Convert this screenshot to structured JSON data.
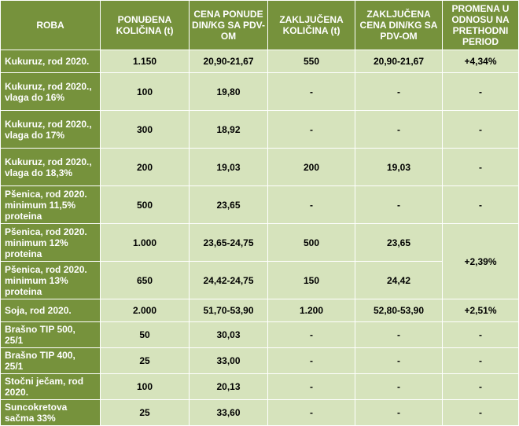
{
  "headers": [
    "ROBA",
    "PONUĐENA KOLIČINA (t)",
    "CENA PONUDE DIN/KG SA PDV-OM",
    "ZAKLJUČENA KOLIČINA (t)",
    "ZAKLJUČENA CENA DIN/KG SA PDV-OM",
    "PROMENA U ODNOSU NA PRETHODNI PERIOD"
  ],
  "rows": [
    {
      "commodity": "Kukuruz, rod 2020.",
      "offered": "1.150",
      "offer_price": "20,90-21,67",
      "closed_qty": "550",
      "closed_price": "20,90-21,67",
      "change": "+4,34%"
    },
    {
      "commodity": "Kukuruz, rod 2020., vlaga do 16%",
      "offered": "100",
      "offer_price": "19,80",
      "closed_qty": "-",
      "closed_price": "-",
      "change": "-"
    },
    {
      "commodity": "Kukuruz, rod 2020., vlaga do 17%",
      "offered": "300",
      "offer_price": "18,92",
      "closed_qty": "-",
      "closed_price": "-",
      "change": "-"
    },
    {
      "commodity": "Kukuruz, rod 2020., vlaga do 18,3%",
      "offered": "200",
      "offer_price": "19,03",
      "closed_qty": "200",
      "closed_price": "19,03",
      "change": "-"
    },
    {
      "commodity": "Pšenica, rod 2020. minimum 11,5% proteina",
      "offered": "500",
      "offer_price": "23,65",
      "closed_qty": "-",
      "closed_price": "-",
      "change": "-"
    },
    {
      "commodity": "Pšenica, rod 2020. minimum 12% proteina",
      "offered": "1.000",
      "offer_price": "23,65-24,75",
      "closed_qty": "500",
      "closed_price": "23,65",
      "change": "+2,39%"
    },
    {
      "commodity": "Pšenica, rod 2020. minimum 13% proteina",
      "offered": "650",
      "offer_price": "24,42-24,75",
      "closed_qty": "150",
      "closed_price": "24,42"
    },
    {
      "commodity": "Soja, rod 2020.",
      "offered": "2.000",
      "offer_price": "51,70-53,90",
      "closed_qty": "1.200",
      "closed_price": "52,80-53,90",
      "change": "+2,51%"
    },
    {
      "commodity": "Brašno TIP 500, 25/1",
      "offered": "50",
      "offer_price": "30,03",
      "closed_qty": "-",
      "closed_price": "-",
      "change": "-"
    },
    {
      "commodity": "Brašno TIP 400, 25/1",
      "offered": "25",
      "offer_price": "33,00",
      "closed_qty": "-",
      "closed_price": "-",
      "change": "-"
    },
    {
      "commodity": "Stočni ječam, rod 2020.",
      "offered": "100",
      "offer_price": "20,13",
      "closed_qty": "-",
      "closed_price": "-",
      "change": "-"
    },
    {
      "commodity": "Suncokretova sačma 33%",
      "offered": "25",
      "offer_price": "33,60",
      "closed_qty": "-",
      "closed_price": "-",
      "change": "-"
    }
  ]
}
